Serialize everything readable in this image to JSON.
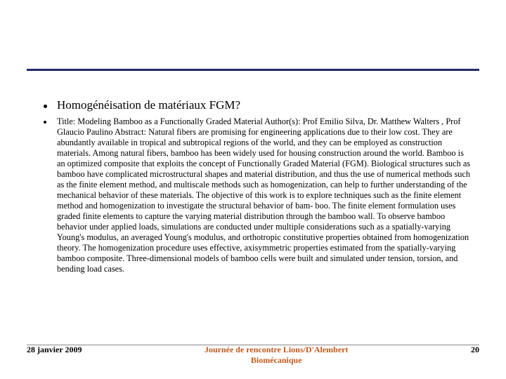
{
  "colors": {
    "rule": "#1f2a6b",
    "footer_accent": "#c05a1a",
    "text": "#000000",
    "background": "#ffffff"
  },
  "typography": {
    "heading_fontsize": 17,
    "body_fontsize": 12.3,
    "footer_fontsize": 12,
    "font_family": "Book Antiqua / Palatino / Georgia"
  },
  "heading": "Homogénéisation de matériaux FGM?",
  "body": "Title: Modeling Bamboo as a Functionally Graded Material  Author(s): Prof Emilio Silva, Dr. Matthew Walters , Prof Glaucio Paulino  Abstract: Natural fibers are promising for engineering applications due to their low cost. They are abundantly available in tropical and subtropical regions of the world, and they can be employed as construction materials. Among natural fibers, bamboo has been widely used for housing construction around the world. Bamboo is an optimized composite that exploits the concept of Functionally Graded Material (FGM). Biological structures such as bamboo have complicated microstructural shapes and material distribution, and thus the use of numerical methods such as the finite element method, and multiscale methods such as homogenization, can help to further understanding of the mechanical behavior of these materials. The objective of this work is to explore techniques such as the finite element method and homogenization to investigate the structural behavior of bam- boo. The finite element formulation uses graded finite elements to capture the varying material distribution through the bamboo wall. To observe bamboo behavior under applied loads, simulations are conducted under multiple considerations such as a spatially-varying Young's modulus, an averaged Young's modulus, and orthotropic constitutive properties obtained from homogenization theory. The homogenization procedure uses effective, axisymmetric properties estimated from the spatially-varying bamboo composite. Three-dimensional models of bamboo cells were built and simulated under tension, torsion, and bending load cases.",
  "footer": {
    "date": "28 janvier 2009",
    "center_line1": "Journée de rencontre Lions/D'Alembert",
    "center_line2": "Biomécanique",
    "page": "20"
  }
}
